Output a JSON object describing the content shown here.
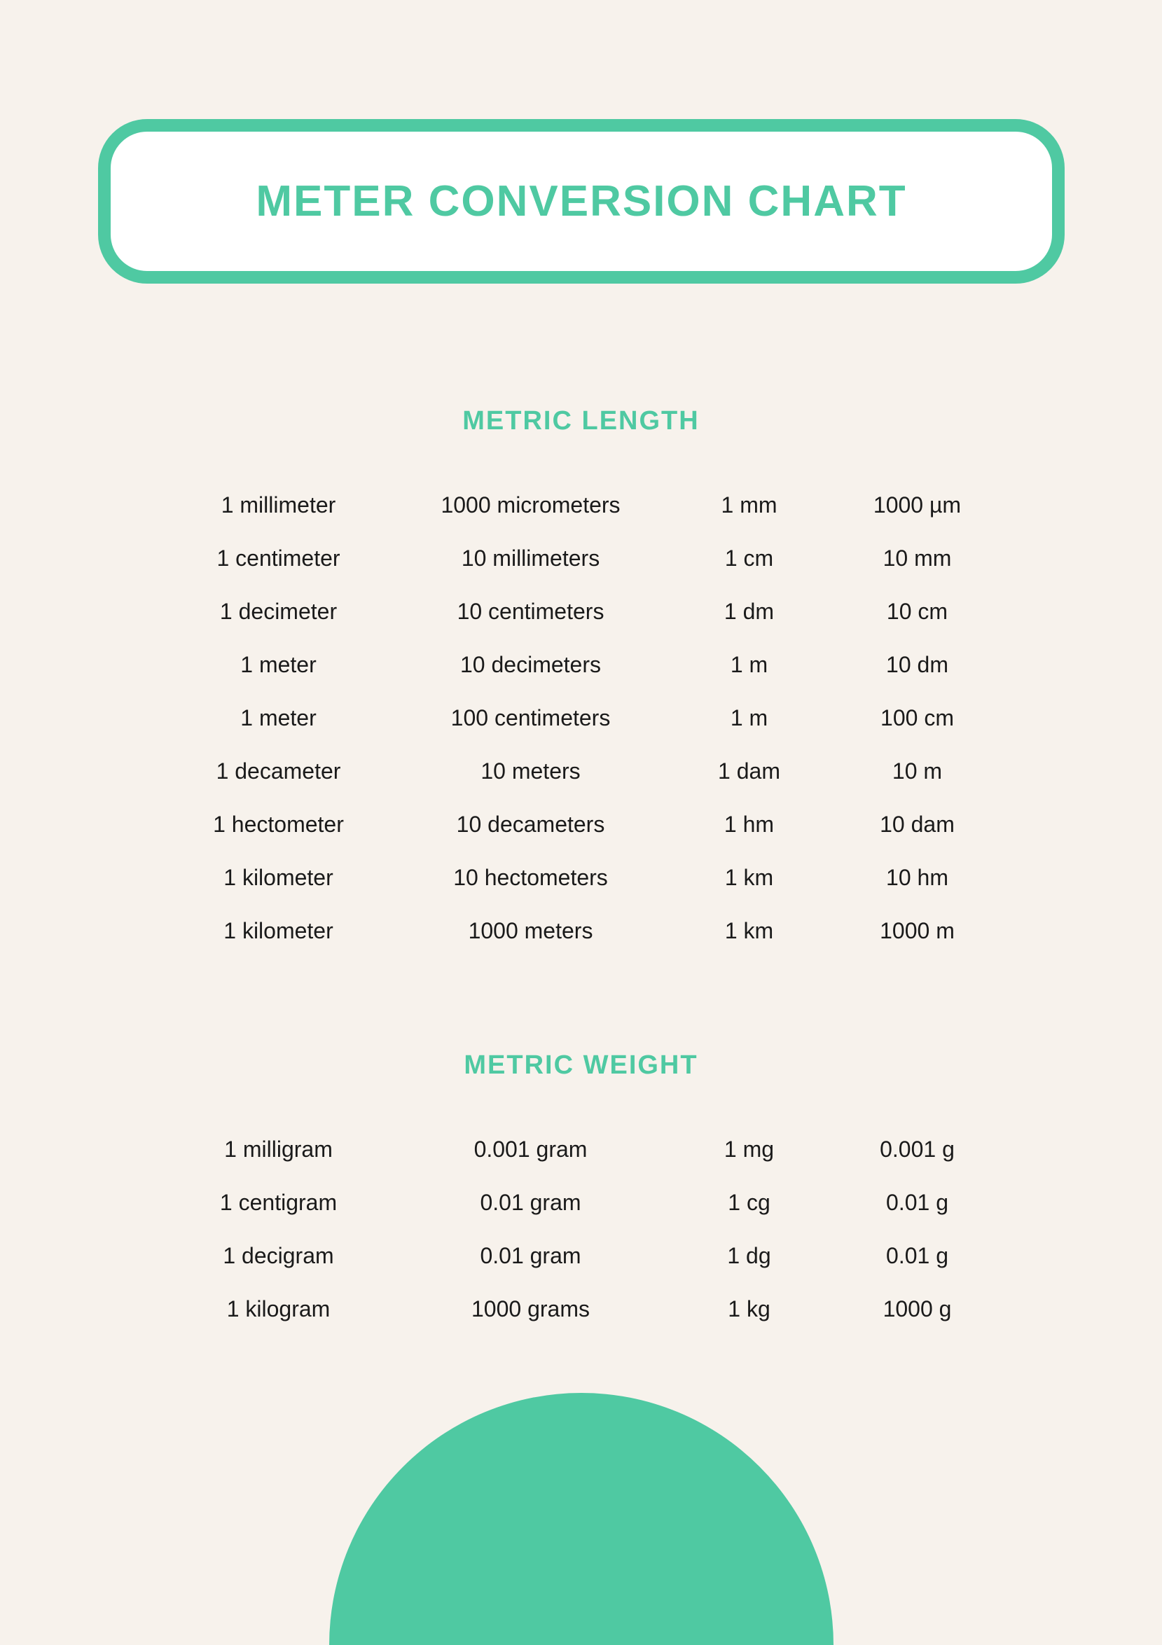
{
  "title": "METER CONVERSION CHART",
  "colors": {
    "background": "#f7f2ec",
    "accent": "#4fc9a2",
    "text": "#1a1a1a",
    "box_background": "#ffffff"
  },
  "typography": {
    "title_fontsize": 62,
    "section_title_fontsize": 38,
    "row_fontsize": 32
  },
  "sections": [
    {
      "title": "METRIC LENGTH",
      "rows": [
        {
          "unit_long": "1 millimeter",
          "equiv_long": "1000 micrometers",
          "unit_short": "1 mm",
          "equiv_short": "1000 µm"
        },
        {
          "unit_long": "1 centimeter",
          "equiv_long": "10 millimeters",
          "unit_short": "1 cm",
          "equiv_short": "10 mm"
        },
        {
          "unit_long": "1 decimeter",
          "equiv_long": "10 centimeters",
          "unit_short": "1 dm",
          "equiv_short": "10 cm"
        },
        {
          "unit_long": "1 meter",
          "equiv_long": "10 decimeters",
          "unit_short": "1 m",
          "equiv_short": "10 dm"
        },
        {
          "unit_long": "1 meter",
          "equiv_long": "100 centimeters",
          "unit_short": "1 m",
          "equiv_short": "100 cm"
        },
        {
          "unit_long": "1 decameter",
          "equiv_long": "10 meters",
          "unit_short": "1 dam",
          "equiv_short": "10 m"
        },
        {
          "unit_long": "1 hectometer",
          "equiv_long": "10 decameters",
          "unit_short": "1 hm",
          "equiv_short": "10 dam"
        },
        {
          "unit_long": "1 kilometer",
          "equiv_long": "10 hectometers",
          "unit_short": "1 km",
          "equiv_short": "10 hm"
        },
        {
          "unit_long": "1 kilometer",
          "equiv_long": "1000 meters",
          "unit_short": "1 km",
          "equiv_short": "1000 m"
        }
      ]
    },
    {
      "title": "METRIC WEIGHT",
      "rows": [
        {
          "unit_long": "1 milligram",
          "equiv_long": "0.001 gram",
          "unit_short": "1 mg",
          "equiv_short": "0.001 g"
        },
        {
          "unit_long": "1 centigram",
          "equiv_long": "0.01 gram",
          "unit_short": "1 cg",
          "equiv_short": "0.01 g"
        },
        {
          "unit_long": "1 decigram",
          "equiv_long": "0.01 gram",
          "unit_short": "1 dg",
          "equiv_short": "0.01 g"
        },
        {
          "unit_long": "1 kilogram",
          "equiv_long": "1000 grams",
          "unit_short": "1 kg",
          "equiv_short": "1000 g"
        }
      ]
    }
  ]
}
